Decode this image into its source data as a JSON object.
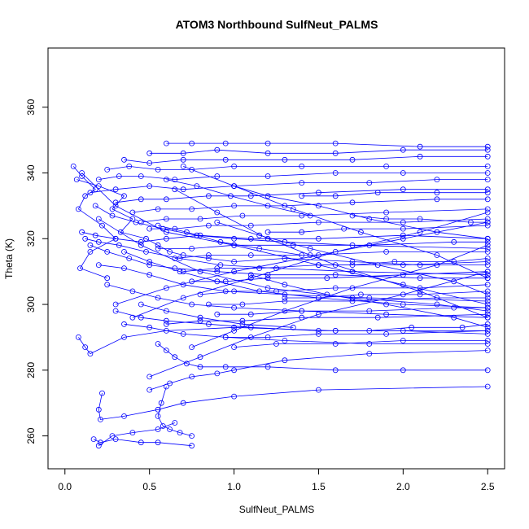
{
  "chart_data": {
    "type": "scatter",
    "title": "ATOM3 Northbound SulfNeut_PALMS",
    "xlabel": "SulfNeut_PALMS",
    "ylabel": "Theta (K)",
    "xlim": [
      -0.1,
      2.6
    ],
    "ylim": [
      250,
      378
    ],
    "x_ticks": [
      0.0,
      0.5,
      1.0,
      1.5,
      2.0,
      2.5
    ],
    "x_tick_labels": [
      "0.0",
      "0.5",
      "1.0",
      "1.5",
      "2.0",
      "2.5"
    ],
    "y_ticks": [
      260,
      280,
      300,
      320,
      340,
      360
    ],
    "y_tick_labels": [
      "260",
      "280",
      "300",
      "320",
      "340",
      "360"
    ],
    "grid": false,
    "series_color": "#0000ff",
    "marker": "open-circle",
    "connected": true,
    "series": [
      {
        "x": [
          0.05,
          0.1,
          0.18,
          0.12,
          0.08,
          0.22,
          0.3,
          0.15,
          0.09,
          0.25
        ],
        "y": [
          342,
          339,
          335,
          333,
          329,
          324,
          320,
          316,
          311,
          308
        ]
      },
      {
        "x": [
          0.07,
          0.2,
          0.35,
          0.28,
          0.4,
          0.33,
          0.48,
          0.55,
          0.62,
          0.7,
          0.85,
          1.0,
          1.3,
          1.7,
          2.1,
          2.5
        ],
        "y": [
          338,
          336,
          333,
          329,
          326,
          322,
          320,
          318,
          316,
          315,
          314,
          313,
          314,
          313,
          312,
          312
        ]
      },
      {
        "x": [
          0.1,
          0.18,
          0.3,
          0.45,
          0.6,
          0.8,
          1.1,
          1.5,
          2.0,
          2.5
        ],
        "y": [
          322,
          321,
          320,
          319,
          320,
          321,
          320,
          320,
          321,
          320
        ]
      },
      {
        "x": [
          0.15,
          0.25,
          0.38,
          0.5,
          0.65,
          0.9,
          1.2,
          1.6,
          2.1,
          2.5
        ],
        "y": [
          318,
          316,
          314,
          312,
          311,
          310,
          309,
          309,
          308,
          308
        ]
      },
      {
        "x": [
          0.2,
          0.35,
          0.5,
          0.7,
          0.95,
          1.3,
          1.8,
          2.5
        ],
        "y": [
          312,
          311,
          309,
          306,
          304,
          303,
          302,
          301
        ]
      },
      {
        "x": [
          0.25,
          0.4,
          0.55,
          0.75,
          1.0,
          1.4,
          1.9,
          2.5
        ],
        "y": [
          306,
          304,
          302,
          300,
          299,
          298,
          297,
          296
        ]
      },
      {
        "x": [
          0.3,
          0.45,
          0.6,
          0.85,
          1.1,
          1.5,
          2.0,
          2.5
        ],
        "y": [
          298,
          296,
          295,
          294,
          293,
          292,
          292,
          291
        ]
      },
      {
        "x": [
          0.35,
          0.5,
          0.7,
          0.95,
          1.3,
          1.8,
          2.5
        ],
        "y": [
          294,
          293,
          291,
          290,
          289,
          288,
          288
        ]
      },
      {
        "x": [
          0.08,
          0.12,
          0.15,
          0.35,
          0.6,
          1.0,
          1.6,
          2.5
        ],
        "y": [
          290,
          287,
          285,
          290,
          292,
          293,
          292,
          292
        ]
      },
      {
        "x": [
          0.55,
          0.6,
          0.65,
          0.72,
          0.8,
          0.95,
          1.2,
          1.6,
          2.0,
          2.5
        ],
        "y": [
          288,
          286,
          284,
          282,
          281,
          281,
          281,
          280,
          280,
          280
        ]
      },
      {
        "x": [
          0.22,
          0.2,
          0.21,
          0.35,
          0.55,
          0.7,
          1.0,
          1.5,
          2.5
        ],
        "y": [
          273,
          268,
          265,
          266,
          268,
          270,
          272,
          274,
          275
        ]
      },
      {
        "x": [
          0.6,
          0.57,
          0.55,
          0.58,
          0.62,
          0.68,
          0.75
        ],
        "y": [
          275,
          270,
          266,
          263,
          262,
          261,
          260
        ]
      },
      {
        "x": [
          0.17,
          0.21,
          0.3,
          0.45,
          0.55,
          0.75
        ],
        "y": [
          259,
          258,
          259,
          258,
          258,
          257
        ]
      },
      {
        "x": [
          0.2,
          0.28,
          0.4,
          0.55,
          0.65
        ],
        "y": [
          257,
          260,
          261,
          262,
          264
        ]
      },
      {
        "x": [
          0.5,
          0.62,
          0.75,
          0.9,
          1.0,
          1.3,
          1.8,
          2.5
        ],
        "y": [
          274,
          276,
          278,
          279,
          280,
          283,
          285,
          286
        ]
      },
      {
        "x": [
          0.6,
          0.75,
          0.95,
          1.2,
          1.6,
          2.1,
          2.5
        ],
        "y": [
          349,
          349,
          349,
          349,
          349,
          348,
          348
        ]
      },
      {
        "x": [
          0.5,
          0.7,
          0.9,
          1.2,
          1.6,
          2.0,
          2.5
        ],
        "y": [
          346,
          346,
          347,
          346,
          346,
          347,
          347
        ]
      },
      {
        "x": [
          0.35,
          0.5,
          0.7,
          0.95,
          1.3,
          1.7,
          2.1,
          2.5
        ],
        "y": [
          344,
          343,
          344,
          344,
          344,
          344,
          345,
          345
        ]
      },
      {
        "x": [
          0.25,
          0.38,
          0.55,
          0.75,
          1.0,
          1.4,
          1.9,
          2.5
        ],
        "y": [
          341,
          342,
          341,
          341,
          342,
          342,
          342,
          342
        ]
      },
      {
        "x": [
          0.2,
          0.32,
          0.45,
          0.65,
          0.9,
          1.2,
          1.6,
          2.0,
          2.5
        ],
        "y": [
          338,
          339,
          339,
          338,
          339,
          339,
          340,
          340,
          340
        ]
      },
      {
        "x": [
          0.15,
          0.3,
          0.5,
          0.7,
          1.0,
          1.4,
          1.8,
          2.2,
          2.5
        ],
        "y": [
          334,
          335,
          336,
          335,
          336,
          337,
          337,
          338,
          338
        ]
      },
      {
        "x": [
          0.3,
          0.45,
          0.6,
          0.85,
          1.1,
          1.5,
          2.0,
          2.5
        ],
        "y": [
          331,
          332,
          332,
          333,
          333,
          334,
          335,
          335
        ]
      },
      {
        "x": [
          0.4,
          0.55,
          0.75,
          1.0,
          1.3,
          1.7,
          2.2,
          2.5
        ],
        "y": [
          328,
          329,
          329,
          330,
          330,
          331,
          332,
          332
        ]
      },
      {
        "x": [
          0.45,
          0.6,
          0.8,
          1.05,
          1.4,
          1.9,
          2.5
        ],
        "y": [
          325,
          326,
          326,
          327,
          327,
          328,
          329
        ]
      },
      {
        "x": [
          0.5,
          0.65,
          0.85,
          1.1,
          1.5,
          2.0,
          2.5
        ],
        "y": [
          323,
          323,
          324,
          324,
          325,
          325,
          326
        ]
      },
      {
        "x": [
          0.55,
          0.75,
          1.0,
          1.35,
          1.8,
          2.3,
          2.5
        ],
        "y": [
          317,
          317,
          318,
          318,
          318,
          319,
          319
        ]
      },
      {
        "x": [
          0.65,
          0.85,
          1.1,
          1.45,
          1.9,
          2.5
        ],
        "y": [
          314,
          315,
          315,
          315,
          316,
          316
        ]
      },
      {
        "x": [
          0.7,
          0.9,
          1.15,
          1.5,
          2.0,
          2.5
        ],
        "y": [
          310,
          311,
          311,
          312,
          312,
          313
        ]
      },
      {
        "x": [
          0.75,
          0.95,
          1.2,
          1.55,
          2.0,
          2.5
        ],
        "y": [
          307,
          307,
          308,
          308,
          309,
          310
        ]
      },
      {
        "x": [
          0.8,
          1.0,
          1.25,
          1.6,
          2.1,
          2.5
        ],
        "y": [
          303,
          304,
          304,
          305,
          305,
          306
        ]
      },
      {
        "x": [
          0.85,
          1.05,
          1.3,
          1.7,
          2.2,
          2.5
        ],
        "y": [
          300,
          300,
          301,
          301,
          302,
          302
        ]
      },
      {
        "x": [
          0.9,
          1.1,
          1.4,
          1.8,
          2.3,
          2.5
        ],
        "y": [
          297,
          297,
          298,
          298,
          299,
          299
        ]
      },
      {
        "x": [
          0.6,
          0.8,
          1.05,
          1.4,
          1.85,
          2.5
        ],
        "y": [
          294,
          295,
          295,
          296,
          296,
          297
        ]
      },
      {
        "x": [
          0.95,
          1.2,
          1.5,
          1.9,
          2.5
        ],
        "y": [
          290,
          290,
          291,
          291,
          292
        ]
      },
      {
        "x": [
          1.0,
          1.25,
          1.6,
          2.0,
          2.5
        ],
        "y": [
          287,
          288,
          288,
          289,
          289
        ]
      },
      {
        "x": [
          0.1,
          0.3,
          0.6,
          1.0,
          1.5,
          2.0,
          2.5
        ],
        "y": [
          340,
          330,
          322,
          318,
          312,
          306,
          300
        ]
      },
      {
        "x": [
          0.2,
          0.45,
          0.8,
          1.2,
          1.7,
          2.2,
          2.5
        ],
        "y": [
          326,
          318,
          310,
          305,
          302,
          300,
          298
        ]
      },
      {
        "x": [
          0.3,
          0.6,
          1.0,
          1.5,
          2.0,
          2.5
        ],
        "y": [
          300,
          305,
          310,
          315,
          320,
          325
        ]
      },
      {
        "x": [
          0.4,
          0.7,
          1.1,
          1.6,
          2.1,
          2.5
        ],
        "y": [
          296,
          302,
          308,
          316,
          322,
          328
        ]
      },
      {
        "x": [
          0.65,
          0.9,
          1.2,
          1.6,
          2.1,
          2.5
        ],
        "y": [
          335,
          328,
          320,
          312,
          304,
          296
        ]
      },
      {
        "x": [
          0.7,
          1.0,
          1.35,
          1.75,
          2.2,
          2.5
        ],
        "y": [
          342,
          336,
          329,
          322,
          315,
          308
        ]
      },
      {
        "x": [
          0.5,
          0.8,
          1.1,
          1.5,
          2.0,
          2.5
        ],
        "y": [
          278,
          284,
          290,
          297,
          303,
          310
        ]
      },
      {
        "x": [
          0.75,
          1.0,
          1.3,
          1.7,
          2.2,
          2.5
        ],
        "y": [
          287,
          292,
          298,
          305,
          312,
          318
        ]
      },
      {
        "x": [
          0.9,
          1.15,
          1.45,
          1.85,
          2.3,
          2.5
        ],
        "y": [
          325,
          321,
          317,
          312,
          307,
          303
        ]
      },
      {
        "x": [
          1.0,
          1.2,
          1.5,
          1.8,
          2.2,
          2.5
        ],
        "y": [
          336,
          333,
          330,
          326,
          322,
          320
        ]
      },
      {
        "x": [
          1.1,
          1.3,
          1.55,
          1.9,
          2.3,
          2.5
        ],
        "y": [
          309,
          306,
          303,
          300,
          296,
          293
        ]
      },
      {
        "x": [
          0.18,
          0.28,
          0.42,
          0.58,
          0.78,
          1.0,
          1.3,
          1.7,
          2.5
        ],
        "y": [
          330,
          327,
          325,
          323,
          321,
          320,
          319,
          318,
          317
        ]
      },
      {
        "x": [
          0.12,
          0.2,
          0.32,
          0.48,
          0.68,
          0.92,
          1.25,
          1.7,
          2.5
        ],
        "y": [
          320,
          319,
          318,
          316,
          314,
          312,
          311,
          310,
          309
        ]
      },
      {
        "x": [
          0.35,
          0.5,
          0.68,
          0.9,
          1.15,
          1.5,
          2.0,
          2.5
        ],
        "y": [
          316,
          313,
          310,
          307,
          304,
          302,
          300,
          299
        ]
      },
      {
        "x": [
          1.2,
          1.4,
          1.65,
          2.0,
          2.5
        ],
        "y": [
          322,
          322,
          323,
          323,
          324
        ]
      },
      {
        "x": [
          1.3,
          1.5,
          1.75,
          2.1,
          2.5
        ],
        "y": [
          302,
          302,
          303,
          303,
          304
        ]
      },
      {
        "x": [
          1.4,
          1.6,
          1.85,
          2.2,
          2.5
        ],
        "y": [
          333,
          333,
          334,
          334,
          334
        ]
      },
      {
        "x": [
          1.5,
          1.7,
          1.95,
          2.3,
          2.5
        ],
        "y": [
          312,
          312,
          313,
          313,
          314
        ]
      },
      {
        "x": [
          1.6,
          1.8,
          2.05,
          2.35,
          2.5
        ],
        "y": [
          292,
          292,
          293,
          293,
          294
        ]
      },
      {
        "x": [
          1.7,
          1.9,
          2.1,
          2.4,
          2.5
        ],
        "y": [
          327,
          326,
          326,
          325,
          325
        ]
      },
      {
        "x": [
          0.45,
          0.6,
          0.8,
          1.05,
          1.35
        ],
        "y": [
          300,
          298,
          296,
          294,
          293
        ]
      },
      {
        "x": [
          0.55,
          0.72,
          0.92,
          1.15,
          1.4
        ],
        "y": [
          324,
          322,
          319,
          317,
          315
        ]
      },
      {
        "x": [
          0.6,
          0.78,
          0.98,
          1.2,
          1.45
        ],
        "y": [
          338,
          336,
          333,
          330,
          327
        ]
      }
    ]
  }
}
